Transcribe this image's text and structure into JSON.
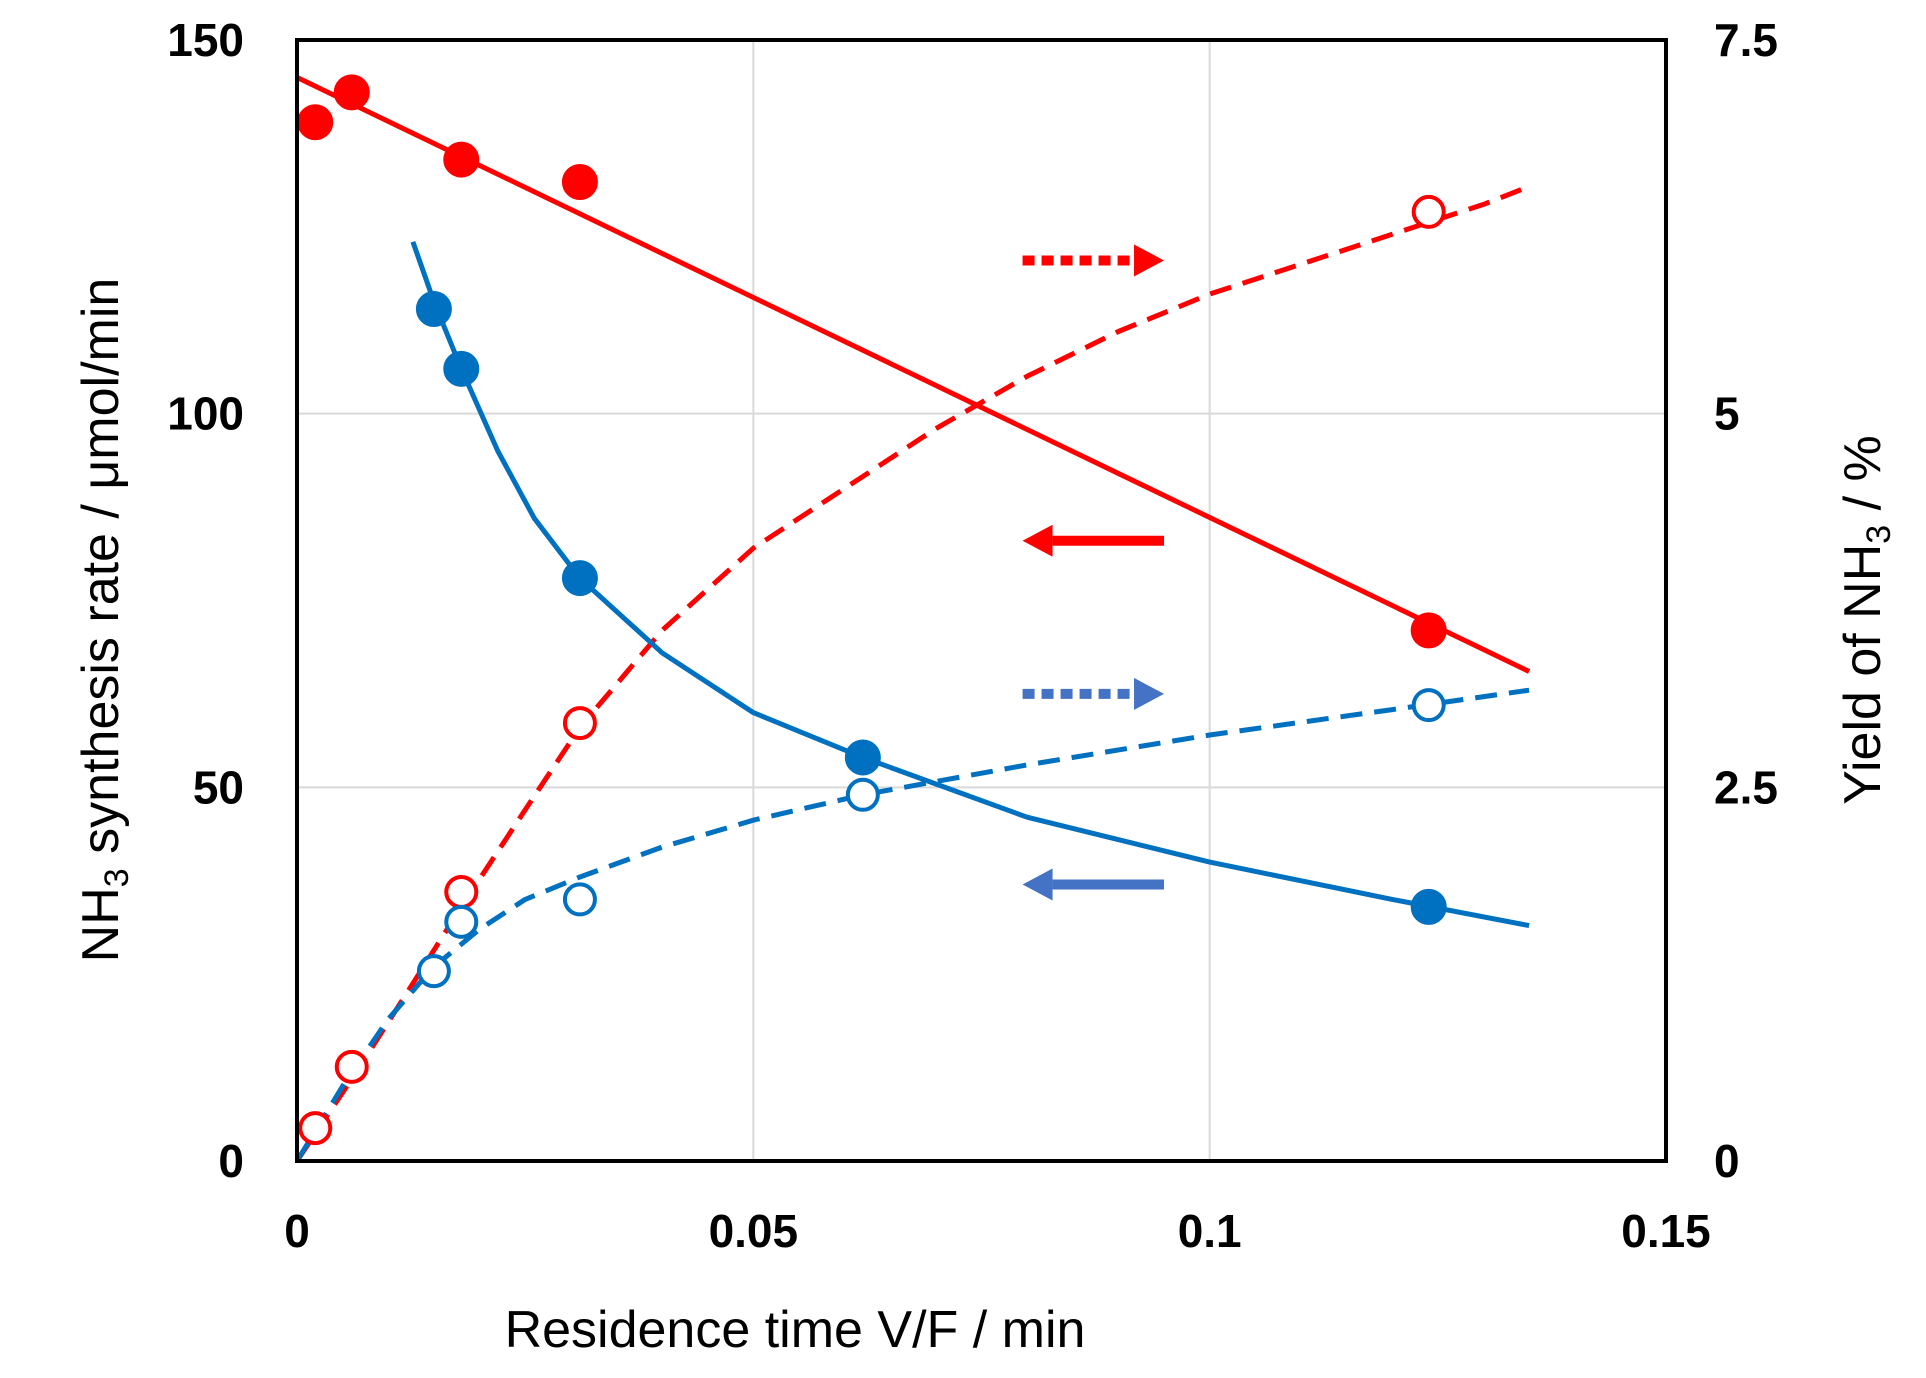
{
  "chart_data": {
    "type": "scatter",
    "title": "",
    "xlabel": "Residence time V/F / min",
    "ylabel": {
      "prefix": "NH",
      "sub": "3",
      "suffix": " synthesis rate / μmol/min"
    },
    "y2label": {
      "prefix": "Yield of NH",
      "sub": "3",
      "suffix": " / %"
    },
    "xlim": [
      0,
      0.15
    ],
    "ylim": [
      0,
      150
    ],
    "y2lim": [
      0,
      7.5
    ],
    "grid": true,
    "xticks": [
      "0",
      "0.05",
      "0.1",
      "0.15"
    ],
    "yticks": [
      "0",
      "50",
      "100",
      "150"
    ],
    "y2ticks": [
      "0",
      "2.5",
      "5",
      "7.5"
    ],
    "colors": {
      "red": "#ff0000",
      "blue": "#0070c0",
      "blue_arrow": "#4472c4"
    },
    "series": [
      {
        "name": "red-synthesis-rate",
        "axis": "left",
        "marker": "filled",
        "color": "#ff0000",
        "x": [
          0.002,
          0.006,
          0.018,
          0.031,
          0.124
        ],
        "y": [
          139,
          143,
          134,
          131,
          71
        ],
        "fit": {
          "line": "solid",
          "x": [
            0,
            0.135
          ],
          "y": [
            145,
            65.5
          ]
        }
      },
      {
        "name": "red-yield",
        "axis": "right",
        "marker": "open",
        "color": "#ff0000",
        "x": [
          0.002,
          0.006,
          0.018,
          0.031,
          0.124
        ],
        "y": [
          0.22,
          0.63,
          1.8,
          2.93,
          6.35
        ],
        "fit": {
          "line": "dashed",
          "x": [
            0,
            0.006,
            0.012,
            0.018,
            0.025,
            0.031,
            0.04,
            0.05,
            0.06,
            0.07,
            0.08,
            0.09,
            0.1,
            0.11,
            0.12,
            0.13,
            0.135
          ],
          "y": [
            0,
            0.55,
            1.12,
            1.7,
            2.35,
            2.9,
            3.55,
            4.1,
            4.5,
            4.9,
            5.25,
            5.55,
            5.8,
            6.0,
            6.2,
            6.4,
            6.52
          ]
        }
      },
      {
        "name": "blue-synthesis-rate",
        "axis": "left",
        "marker": "filled",
        "color": "#0070c0",
        "x": [
          0.015,
          0.018,
          0.031,
          0.062,
          0.124
        ],
        "y": [
          114,
          106,
          78,
          54,
          34
        ],
        "fit": {
          "line": "solid",
          "x": [
            0.0127,
            0.015,
            0.018,
            0.022,
            0.026,
            0.031,
            0.04,
            0.05,
            0.062,
            0.08,
            0.1,
            0.12,
            0.135
          ],
          "y": [
            123,
            115,
            106,
            95,
            86,
            78,
            68,
            60,
            54,
            46,
            40,
            35,
            31.5
          ]
        }
      },
      {
        "name": "blue-yield",
        "axis": "right",
        "marker": "open",
        "color": "#0070c0",
        "x": [
          0.015,
          0.018,
          0.031,
          0.062,
          0.124
        ],
        "y": [
          1.27,
          1.6,
          1.75,
          2.45,
          3.05
        ],
        "fit": {
          "line": "dashed",
          "x": [
            0,
            0.005,
            0.01,
            0.015,
            0.02,
            0.025,
            0.031,
            0.04,
            0.05,
            0.062,
            0.08,
            0.1,
            0.12,
            0.135
          ],
          "y": [
            0,
            0.5,
            0.95,
            1.3,
            1.55,
            1.75,
            1.9,
            2.1,
            2.28,
            2.45,
            2.65,
            2.85,
            3.02,
            3.15
          ]
        }
      }
    ],
    "arrows": [
      {
        "name": "red-yield-arrow",
        "direction": "right",
        "style": "dotted",
        "color": "#ff0000",
        "x": [
          0.0795,
          0.095
        ],
        "y": 120.5
      },
      {
        "name": "red-rate-arrow",
        "direction": "left",
        "style": "solid",
        "color": "#ff0000",
        "x": [
          0.0795,
          0.095
        ],
        "y": 83
      },
      {
        "name": "blue-yield-arrow",
        "direction": "right",
        "style": "dotted",
        "color": "#4472c4",
        "x": [
          0.0795,
          0.095
        ],
        "y": 62.5
      },
      {
        "name": "blue-rate-arrow",
        "direction": "left",
        "style": "solid",
        "color": "#4472c4",
        "x": [
          0.0795,
          0.095
        ],
        "y": 37
      }
    ]
  }
}
